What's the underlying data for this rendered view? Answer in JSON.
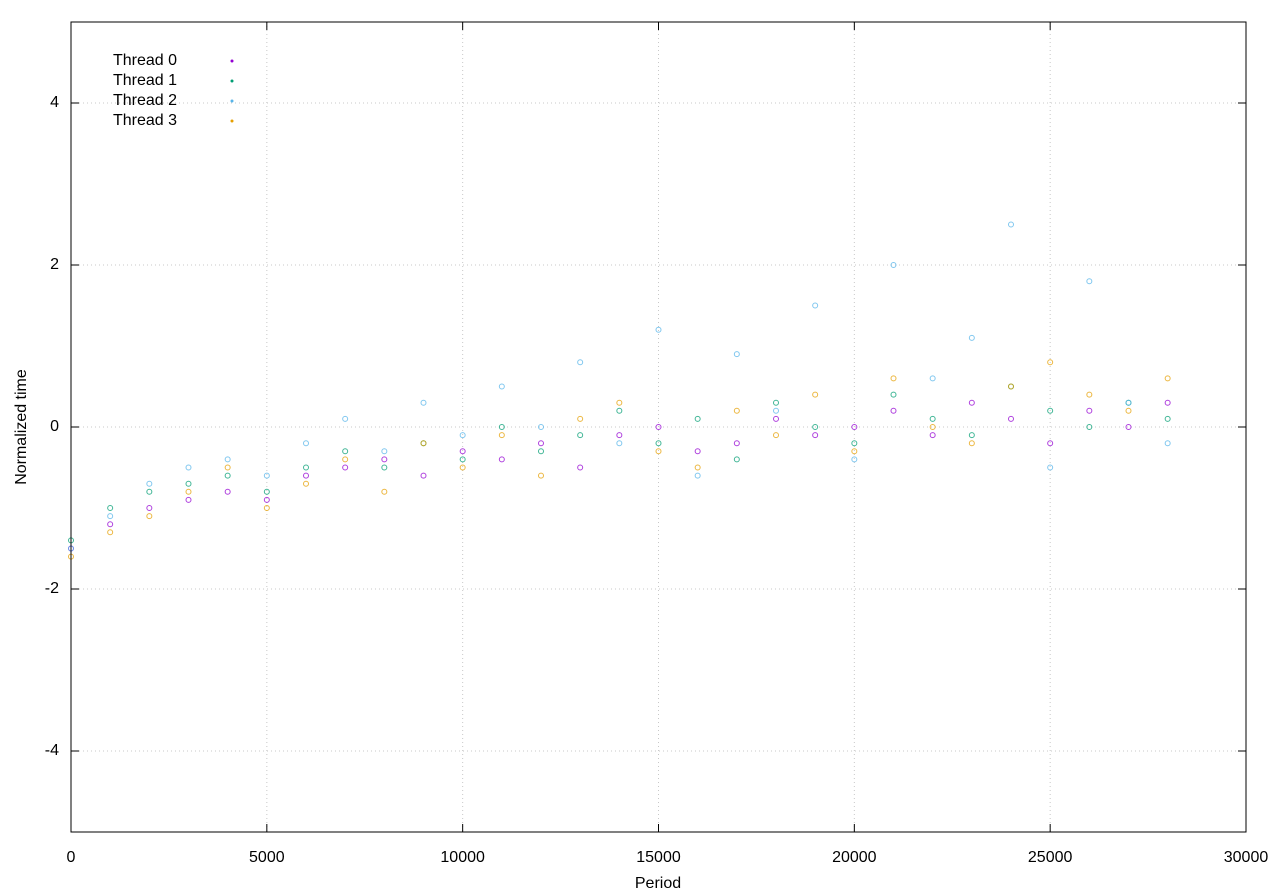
{
  "chart_data": {
    "type": "scatter",
    "xlabel": "Period",
    "ylabel": "Normalized time",
    "xlim": [
      0,
      30000
    ],
    "ylim": [
      -5,
      5
    ],
    "xticks": [
      0,
      5000,
      10000,
      15000,
      20000,
      25000,
      30000
    ],
    "yticks": [
      -4,
      -2,
      0,
      2,
      4
    ],
    "grid": true,
    "legend": "top-left",
    "x": [
      0,
      1000,
      2000,
      3000,
      4000,
      5000,
      6000,
      7000,
      8000,
      9000,
      10000,
      11000,
      12000,
      13000,
      14000,
      15000,
      16000,
      17000,
      18000,
      19000,
      20000,
      21000,
      22000,
      23000,
      24000,
      25000,
      26000,
      27000,
      28000
    ],
    "series": [
      {
        "name": "Thread 0",
        "color": "#9400d3",
        "values": [
          -1.5,
          -1.2,
          -1.0,
          -0.9,
          -0.8,
          -0.9,
          -0.6,
          -0.5,
          -0.4,
          -0.6,
          -0.3,
          -0.4,
          -0.2,
          -0.5,
          -0.1,
          0.0,
          -0.3,
          -0.2,
          0.1,
          -0.1,
          0.0,
          0.2,
          -0.1,
          0.3,
          0.1,
          -0.2,
          0.2,
          0.0,
          0.3
        ]
      },
      {
        "name": "Thread 1",
        "color": "#009e73",
        "values": [
          -1.4,
          -1.0,
          -0.8,
          -0.7,
          -0.6,
          -0.8,
          -0.5,
          -0.3,
          -0.5,
          -0.2,
          -0.4,
          0.0,
          -0.3,
          -0.1,
          0.2,
          -0.2,
          0.1,
          -0.4,
          0.3,
          0.0,
          -0.2,
          0.4,
          0.1,
          -0.1,
          0.5,
          0.2,
          0.0,
          0.3,
          0.1
        ]
      },
      {
        "name": "Thread 2",
        "color": "#56b4e9",
        "values": [
          -1.5,
          -1.1,
          -0.7,
          -0.5,
          -0.4,
          -0.6,
          -0.2,
          0.1,
          -0.3,
          0.3,
          -0.1,
          0.5,
          0.0,
          0.8,
          -0.2,
          1.2,
          -0.6,
          0.9,
          0.2,
          1.5,
          -0.4,
          2.0,
          0.6,
          1.1,
          2.5,
          -0.5,
          1.8,
          0.3,
          -0.2
        ]
      },
      {
        "name": "Thread 3",
        "color": "#e69f00",
        "values": [
          -1.6,
          -1.3,
          -1.1,
          -0.8,
          -0.5,
          -1.0,
          -0.7,
          -0.4,
          -0.8,
          -0.2,
          -0.5,
          -0.1,
          -0.6,
          0.1,
          0.3,
          -0.3,
          -0.5,
          0.2,
          -0.1,
          0.4,
          -0.3,
          0.6,
          0.0,
          -0.2,
          0.5,
          0.8,
          0.4,
          0.2,
          0.6
        ]
      }
    ]
  }
}
